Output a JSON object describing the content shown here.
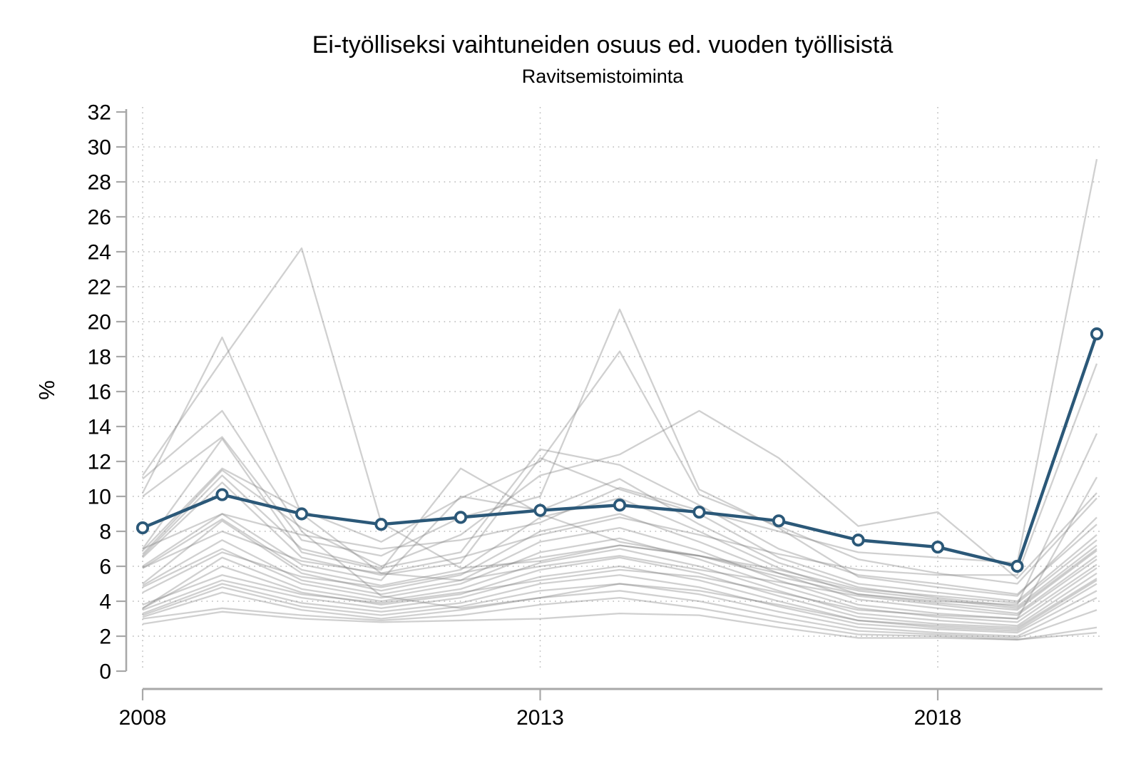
{
  "title": "Ei-työlliseksi vaihtuneiden osuus ed. vuoden työllisistä",
  "subtitle": "Ravitsemistoiminta",
  "ylabel": "%",
  "colors": {
    "highlight_line": "#2b5878",
    "marker_fill": "#ffffff",
    "background_line": "#7d7d7d",
    "axis": "#a8a8a8",
    "grid": "#b9b9b9",
    "text": "#000000"
  },
  "chart_data": {
    "type": "line",
    "title": "Ei-työlliseksi vaihtuneiden osuus ed. vuoden työllisistä",
    "subtitle": "Ravitsemistoiminta",
    "ylabel": "%",
    "xlabel": "",
    "x": [
      2008,
      2009,
      2010,
      2011,
      2012,
      2013,
      2014,
      2015,
      2016,
      2017,
      2018,
      2019,
      2020
    ],
    "xlim": [
      2008,
      2020
    ],
    "ylim": [
      0,
      32
    ],
    "y_ticks": [
      0,
      2,
      4,
      6,
      8,
      10,
      12,
      14,
      16,
      18,
      20,
      22,
      24,
      26,
      28,
      30,
      32
    ],
    "x_ticks": [
      2008,
      2013,
      2018
    ],
    "grid": "dotted horizontal at y ticks 2-30 and vertical at x ticks",
    "legend_position": "none",
    "highlight_series": {
      "name": "Ravitsemistoiminta",
      "values": [
        8.2,
        10.1,
        9.0,
        8.4,
        8.8,
        9.2,
        9.5,
        9.1,
        8.6,
        7.5,
        7.1,
        6.0,
        19.3
      ]
    },
    "background_series": [
      {
        "values": [
          10.2,
          19.1,
          9.0,
          5.6,
          5.2,
          6.0,
          6.6,
          5.8,
          5.1,
          4.3,
          3.8,
          3.3,
          6.6
        ]
      },
      {
        "values": [
          11.2,
          17.8,
          24.2,
          8.5,
          5.9,
          6.3,
          7.2,
          6.6,
          5.6,
          4.6,
          4.1,
          3.6,
          7.0
        ]
      },
      {
        "values": [
          11.0,
          14.9,
          8.0,
          4.3,
          3.6,
          4.2,
          5.0,
          4.6,
          3.8,
          2.9,
          2.6,
          2.4,
          5.2
        ]
      },
      {
        "values": [
          10.0,
          13.4,
          7.5,
          6.6,
          8.8,
          10.0,
          20.7,
          10.4,
          8.2,
          5.4,
          4.8,
          4.3,
          8.8
        ]
      },
      {
        "values": [
          7.0,
          13.3,
          6.8,
          5.8,
          11.6,
          9.0,
          7.4,
          6.6,
          5.8,
          4.7,
          4.3,
          3.9,
          7.5
        ]
      },
      {
        "values": [
          6.9,
          11.6,
          9.2,
          7.4,
          9.9,
          12.0,
          18.3,
          10.1,
          8.3,
          6.4,
          5.6,
          5.0,
          9.9
        ]
      },
      {
        "values": [
          6.7,
          11.5,
          8.2,
          6.0,
          7.8,
          11.2,
          12.4,
          14.9,
          12.2,
          8.3,
          9.1,
          5.3,
          10.2
        ]
      },
      {
        "values": [
          6.6,
          11.2,
          7.0,
          5.9,
          6.8,
          12.7,
          11.8,
          9.5,
          7.0,
          5.5,
          5.0,
          4.4,
          8.4
        ]
      },
      {
        "values": [
          6.5,
          10.8,
          6.5,
          5.5,
          6.2,
          12.2,
          10.4,
          9.0,
          6.5,
          5.0,
          4.5,
          4.0,
          7.8
        ]
      },
      {
        "values": [
          6.0,
          9.0,
          6.1,
          5.2,
          10.0,
          9.2,
          11.0,
          8.4,
          6.2,
          4.8,
          4.2,
          3.7,
          7.2
        ]
      },
      {
        "values": [
          5.9,
          8.7,
          5.8,
          4.9,
          5.8,
          8.8,
          9.9,
          8.0,
          5.9,
          4.4,
          3.9,
          3.5,
          6.9
        ]
      },
      {
        "values": [
          5.0,
          8.6,
          5.6,
          4.6,
          5.5,
          8.0,
          9.0,
          7.4,
          5.6,
          4.1,
          3.6,
          3.2,
          6.4
        ]
      },
      {
        "values": [
          4.9,
          7.5,
          5.2,
          4.4,
          5.2,
          7.4,
          8.2,
          6.9,
          5.2,
          3.8,
          3.3,
          3.0,
          6.1
        ]
      },
      {
        "values": [
          4.8,
          7.0,
          5.0,
          4.2,
          5.0,
          6.8,
          7.6,
          6.4,
          4.9,
          3.6,
          3.1,
          2.8,
          5.9
        ]
      },
      {
        "values": [
          3.6,
          6.5,
          4.7,
          4.0,
          4.7,
          6.2,
          7.0,
          6.0,
          4.6,
          3.3,
          2.9,
          2.6,
          5.6
        ]
      },
      {
        "values": [
          3.6,
          6.0,
          4.5,
          3.8,
          4.4,
          5.8,
          6.5,
          5.6,
          4.3,
          3.1,
          2.7,
          2.5,
          5.3
        ]
      },
      {
        "values": [
          3.5,
          5.2,
          4.2,
          3.6,
          4.2,
          5.4,
          6.0,
          5.2,
          4.0,
          2.9,
          2.5,
          2.3,
          5.0
        ]
      },
      {
        "values": [
          3.3,
          5.0,
          3.9,
          3.4,
          3.9,
          5.0,
          5.5,
          4.8,
          3.7,
          2.7,
          2.4,
          2.2,
          4.6
        ]
      },
      {
        "values": [
          3.2,
          4.8,
          3.7,
          3.2,
          3.7,
          4.6,
          5.0,
          4.4,
          3.4,
          2.5,
          2.2,
          2.0,
          4.2
        ]
      },
      {
        "values": [
          3.1,
          4.5,
          3.5,
          3.0,
          3.5,
          4.2,
          4.6,
          4.0,
          3.1,
          2.3,
          2.1,
          1.9,
          3.5
        ]
      },
      {
        "values": [
          3.0,
          3.6,
          3.2,
          2.9,
          3.2,
          3.8,
          4.2,
          3.6,
          2.8,
          2.1,
          2.0,
          1.8,
          2.5
        ]
      },
      {
        "values": [
          2.7,
          3.4,
          3.0,
          2.8,
          2.9,
          3.0,
          3.3,
          3.2,
          2.5,
          1.9,
          1.9,
          1.8,
          2.2
        ]
      },
      {
        "values": [
          7.0,
          9.0,
          7.8,
          7.0,
          7.5,
          8.5,
          10.5,
          9.2,
          8.0,
          6.8,
          6.5,
          6.2,
          29.3
        ]
      },
      {
        "values": [
          5.9,
          8.0,
          6.3,
          5.6,
          6.5,
          7.8,
          8.8,
          7.8,
          6.7,
          5.8,
          5.5,
          5.5,
          17.6
        ]
      },
      {
        "values": [
          4.5,
          6.8,
          5.4,
          4.8,
          5.6,
          6.5,
          7.2,
          6.6,
          5.4,
          4.4,
          4.0,
          3.8,
          13.6
        ]
      },
      {
        "values": [
          3.8,
          5.5,
          4.4,
          3.9,
          4.5,
          5.2,
          5.8,
          5.4,
          4.5,
          3.5,
          3.2,
          3.0,
          11.1
        ]
      }
    ]
  }
}
